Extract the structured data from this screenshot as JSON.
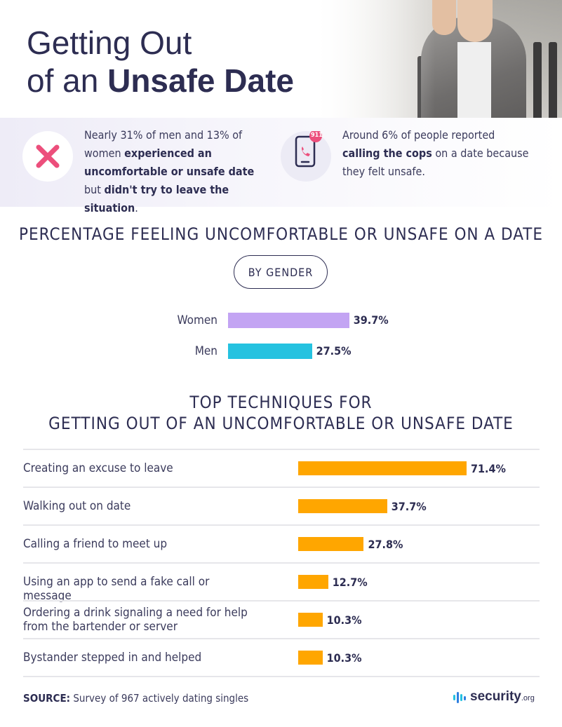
{
  "title": {
    "line1": "Getting Out",
    "line2_prefix": "of an ",
    "line2_bold": "Unsafe Date"
  },
  "stats": [
    {
      "icon": "x-mark-icon",
      "parts": [
        {
          "t": "Nearly 31% of men and 13% of women ",
          "b": false
        },
        {
          "t": "experienced an uncomfortable or unsafe date",
          "b": true
        },
        {
          "t": " but ",
          "b": false
        },
        {
          "t": "didn't try to leave the situation",
          "b": true
        },
        {
          "t": ".",
          "b": false
        }
      ]
    },
    {
      "icon": "phone-911-icon",
      "badge": "911",
      "parts": [
        {
          "t": "Around 6% of people reported ",
          "b": false
        },
        {
          "t": "calling the cops",
          "b": true
        },
        {
          "t": " on a date because they felt unsafe.",
          "b": false
        }
      ]
    }
  ],
  "chart_data": [
    {
      "type": "bar",
      "title": "PERCENTAGE FEELING UNCOMFORTABLE OR UNSAFE ON A DATE",
      "subtitle": "BY GENDER",
      "orientation": "horizontal",
      "categories": [
        "Women",
        "Men"
      ],
      "values": [
        39.7,
        27.5
      ],
      "value_labels": [
        "39.7%",
        "27.5%"
      ],
      "colors": [
        "#c3a4f3",
        "#25c2e0"
      ],
      "ylim": [
        0,
        100
      ]
    },
    {
      "type": "bar",
      "title": "TOP TECHNIQUES FOR\nGETTING OUT OF AN UNCOMFORTABLE OR UNSAFE DATE",
      "orientation": "horizontal",
      "categories": [
        "Creating an excuse to leave",
        "Walking out on date",
        "Calling a friend to meet up",
        "Using an app to send a fake call or message",
        "Ordering a drink signaling a need for help from the bartender or server",
        "Bystander stepped in and helped"
      ],
      "values": [
        71.4,
        37.7,
        27.8,
        12.7,
        10.3,
        10.3
      ],
      "value_labels": [
        "71.4%",
        "37.7%",
        "27.8%",
        "12.7%",
        "10.3%",
        "10.3%"
      ],
      "colors": [
        "#ffa600"
      ],
      "ylim": [
        0,
        71.4
      ]
    }
  ],
  "source": {
    "label": "SOURCE:",
    "text": "Survey of 967 actively dating singles"
  },
  "brand": {
    "name": "security",
    "suffix": ".org"
  }
}
